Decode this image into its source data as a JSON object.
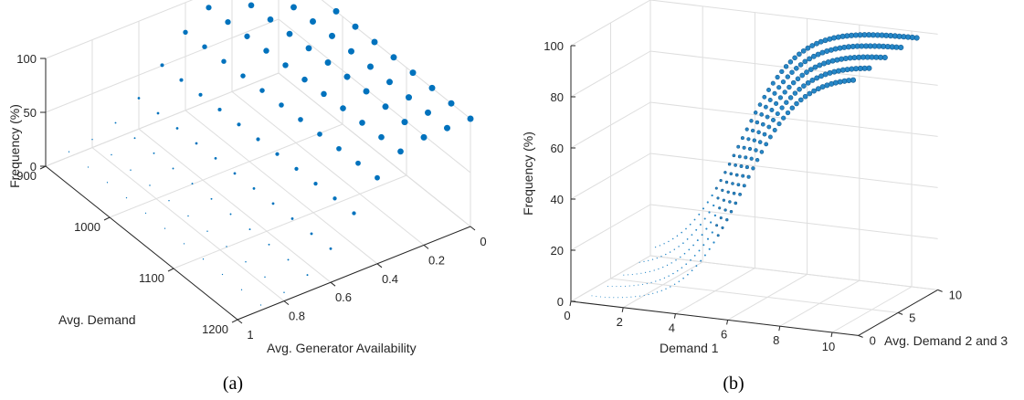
{
  "chart_data": [
    {
      "type": "scatter3d",
      "caption": "(a)",
      "xlabel": "Avg. Generator Availability",
      "ylabel": "Avg. Demand",
      "zlabel": "Frequency (%)",
      "xlim": [
        0,
        1
      ],
      "ylim": [
        900,
        1200
      ],
      "zlim": [
        0,
        100
      ],
      "xticks": [
        "0",
        "0.2",
        "0.4",
        "0.6",
        "0.8",
        "1"
      ],
      "yticks": [
        "900",
        "1000",
        "1100",
        "1200"
      ],
      "zticks": [
        "0",
        "50",
        "100"
      ],
      "grid": true,
      "marker_color": "#0072BD",
      "note": "marker size grows with frequency",
      "availability_levels": [
        0.0,
        0.1,
        0.2,
        0.3,
        0.4,
        0.5,
        0.6,
        0.7,
        0.8,
        0.9
      ],
      "demand_levels": [
        900,
        930,
        960,
        990,
        1020,
        1050,
        1080,
        1110,
        1140,
        1170,
        1200
      ],
      "frequency_rule": "plateau near 100% for low availability, falling through ~55% to ~5% as availability rises; rises slightly with demand"
    },
    {
      "type": "scatter3d",
      "caption": "(b)",
      "xlabel": "Demand 1",
      "ylabel": "Avg. Demand 2 and 3",
      "zlabel": "Frequency (%)",
      "xlim": [
        0,
        11
      ],
      "ylim": [
        0,
        10
      ],
      "zlim": [
        0,
        100
      ],
      "xticks": [
        "0",
        "2",
        "4",
        "6",
        "8",
        "10"
      ],
      "yticks": [
        "0",
        "5",
        "10"
      ],
      "zticks": [
        "0",
        "20",
        "40",
        "60",
        "80",
        "100"
      ],
      "grid": true,
      "marker_color": "#0072BD",
      "demand1_range": [
        0.5,
        10.5
      ],
      "demand23_levels": [
        1,
        3,
        5,
        7,
        9
      ],
      "frequency_rule": "sigmoid in Demand 1, from ~3% at 0.5 to 100% near 9; shifts to lower Demand 1 as Avg. Demand 2 and 3 increases"
    }
  ]
}
